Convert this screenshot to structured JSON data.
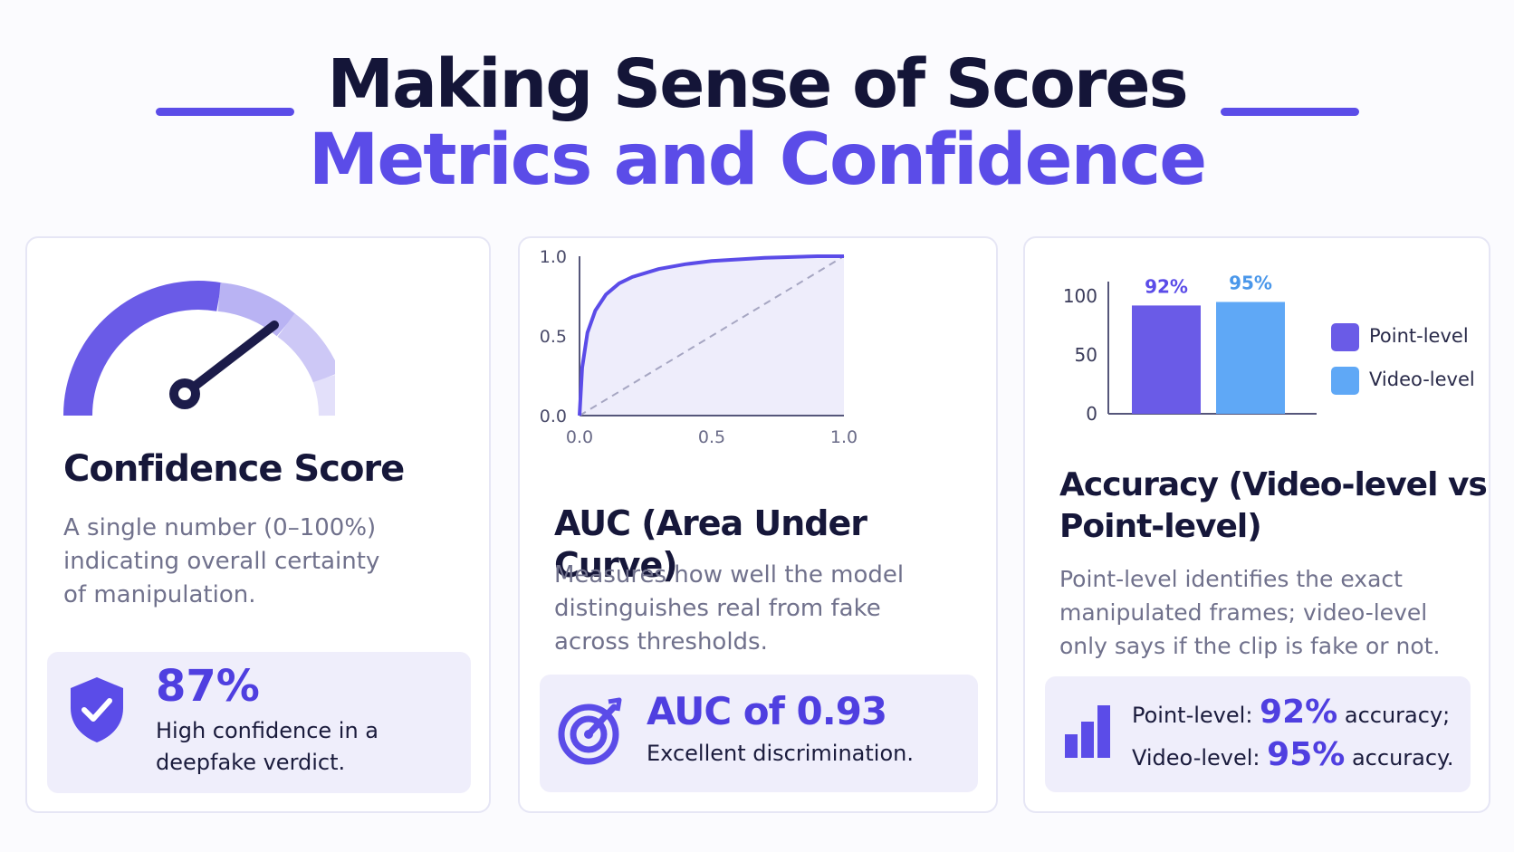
{
  "header": {
    "title": "Making Sense of Scores",
    "subtitle": "Metrics and Confidence"
  },
  "colors": {
    "primary": "#5b4ce8",
    "primary_dark": "#141538",
    "light_purple": "#efeefb",
    "video_blue": "#5fa8f6",
    "point_purple": "#6a5be7"
  },
  "confidence_card": {
    "gauge_value_percent": 87,
    "title": "Confidence Score",
    "description": [
      "A single number (0–100%)",
      "indicating overall certainty",
      "of manipulation."
    ],
    "badge_icon": "shield-check-icon",
    "value": "87%",
    "value_caption": [
      "High confidence in a",
      "deepfake verdict."
    ]
  },
  "auc_card": {
    "title": "AUC (Area Under Curve)",
    "description": [
      "Measures how well the model",
      "distinguishes real from fake",
      "across thresholds."
    ],
    "badge_icon": "target-icon",
    "value": "AUC of 0.93",
    "value_caption": "Excellent discrimination."
  },
  "accuracy_card": {
    "title_lines": [
      "Accuracy (Video-level vs",
      "Point-level)"
    ],
    "description": [
      "Point-level identifies the exact",
      "manipulated frames; video-level",
      "only says if the clip is fake or not."
    ],
    "badge_icon": "bar-chart-icon",
    "line1": {
      "label": "Point-level:",
      "value": "92%",
      "suffix": "accuracy;"
    },
    "line2": {
      "label": "Video-level:",
      "value": "95%",
      "suffix": "accuracy."
    }
  },
  "chart_data": [
    {
      "type": "line",
      "title": "",
      "xlabel": "",
      "ylabel": "",
      "xlim": [
        0,
        1
      ],
      "ylim": [
        0,
        1
      ],
      "x_ticks": [
        "0.0",
        "0.5",
        "1.0"
      ],
      "y_ticks": [
        "0.0",
        "0.5",
        "1.0"
      ],
      "series": [
        {
          "x": [
            0,
            0.01,
            0.03,
            0.06,
            0.1,
            0.15,
            0.2,
            0.3,
            0.4,
            0.5,
            0.6,
            0.7,
            0.8,
            0.9,
            1.0
          ],
          "y": [
            0,
            0.3,
            0.52,
            0.66,
            0.76,
            0.83,
            0.87,
            0.92,
            0.95,
            0.97,
            0.98,
            0.99,
            0.995,
            1.0,
            1.0
          ]
        },
        {
          "x": [
            0,
            1
          ],
          "y": [
            0,
            1
          ],
          "style": "dashed"
        }
      ]
    },
    {
      "type": "bar",
      "title": "",
      "categories": [
        "Point-level",
        "Video-level"
      ],
      "values": [
        92,
        95
      ],
      "data_labels": [
        "92%",
        "95%"
      ],
      "ylim": [
        0,
        100
      ],
      "y_ticks": [
        "0",
        "50",
        "100"
      ],
      "legend": [
        "Point-level",
        "Video-level"
      ],
      "legend_position": "right",
      "grid": false
    }
  ]
}
